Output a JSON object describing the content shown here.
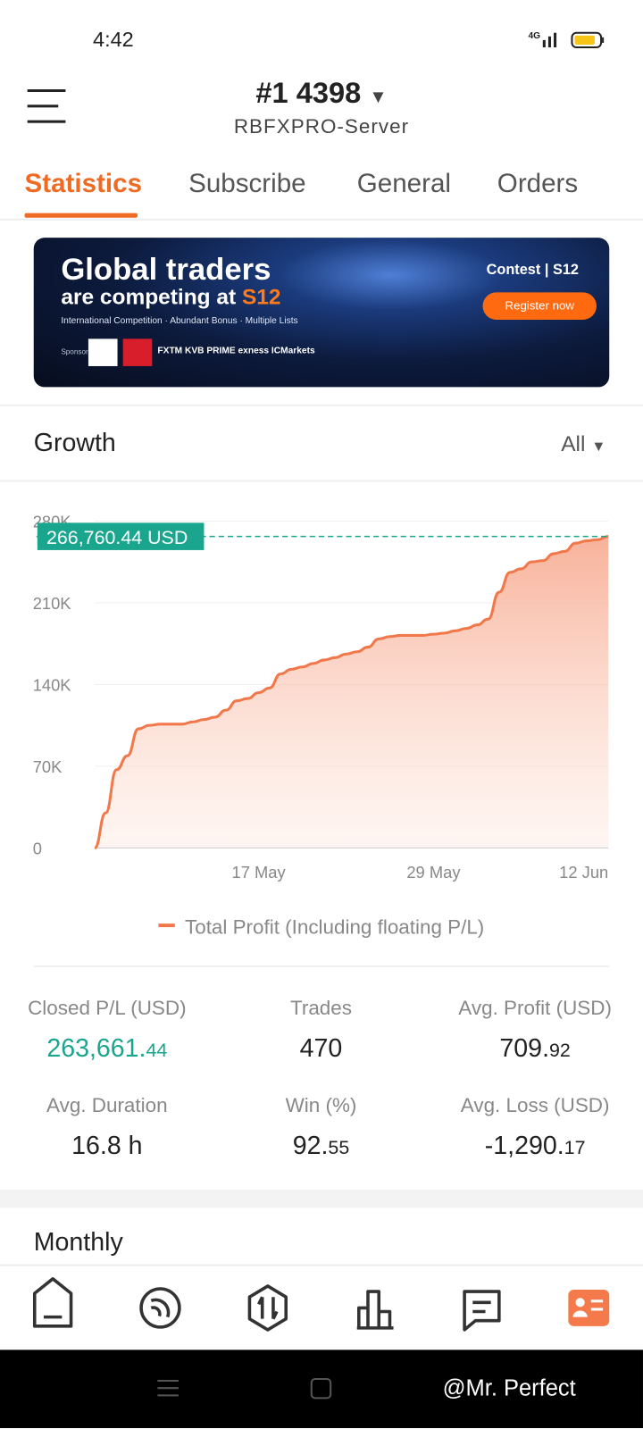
{
  "status_bar": {
    "time": "4:42"
  },
  "header": {
    "account": "#1 4398",
    "server": "RBFXPRO-Server"
  },
  "tabs": [
    "Statistics",
    "Subscribe",
    "General",
    "Orders"
  ],
  "banner": {
    "title": "Global traders",
    "subtitle": "are competing at",
    "brand": "S12",
    "tagline": "International Competition · Abundant Bonus · Multiple Lists",
    "sponsor": "Sponsor",
    "logos": "FXTM  KVB PRIME  exness  ICMarkets",
    "contest": "Contest | S12",
    "button": "Register now"
  },
  "growth": {
    "title": "Growth",
    "range": "All"
  },
  "chart_data": {
    "type": "line",
    "categories": [
      null,
      null,
      null,
      null,
      null,
      null,
      null,
      null,
      null,
      null,
      null,
      null,
      null,
      null,
      null,
      "17 May",
      null,
      null,
      null,
      null,
      null,
      null,
      null,
      null,
      null,
      null,
      null,
      null,
      null,
      null,
      null,
      "29 May",
      null,
      null,
      null,
      null,
      null,
      null,
      null,
      null,
      null,
      null,
      null,
      null,
      null,
      null,
      null,
      "12 Jun"
    ],
    "series": [
      {
        "name": "Total Profit (Including floating P/L)",
        "color": "#f0784a",
        "values": [
          0,
          30000,
          67000,
          79000,
          102000,
          105000,
          106000,
          106000,
          106000,
          108000,
          110000,
          112000,
          118000,
          126000,
          128000,
          133000,
          137000,
          149000,
          153000,
          155000,
          158000,
          161000,
          163000,
          166000,
          168000,
          172000,
          179000,
          181000,
          182000,
          182000,
          182000,
          183000,
          184000,
          186000,
          188000,
          191000,
          196000,
          219000,
          236000,
          239000,
          245000,
          246000,
          252000,
          254000,
          261000,
          263000,
          264000,
          266760.44
        ]
      }
    ],
    "annotation": {
      "label": "266,760.44 USD",
      "color": "#1aa58e"
    },
    "ylim": [
      0,
      280000
    ],
    "yticks": [
      0,
      {
        "value": 70000,
        "label": "70K"
      },
      {
        "value": 140000,
        "label": "140K"
      },
      {
        "value": 210000,
        "label": "210K"
      },
      {
        "value": 280000,
        "label": "280K"
      }
    ],
    "grid": true
  },
  "stats": [
    {
      "label": "Closed P/L (USD)",
      "value": "263,661.44"
    },
    {
      "label": "Trades",
      "value": "470"
    },
    {
      "label": "Avg. Profit (USD)",
      "value": "709.92"
    },
    {
      "label": "Avg. Duration",
      "value": "16.8 h"
    },
    {
      "label": "Win (%)",
      "value": "92.55"
    },
    {
      "label": "Avg. Loss (USD)",
      "value": "-1,290.17"
    }
  ],
  "monthly": {
    "title": "Monthly"
  },
  "watermark": "@Mr. Perfect"
}
